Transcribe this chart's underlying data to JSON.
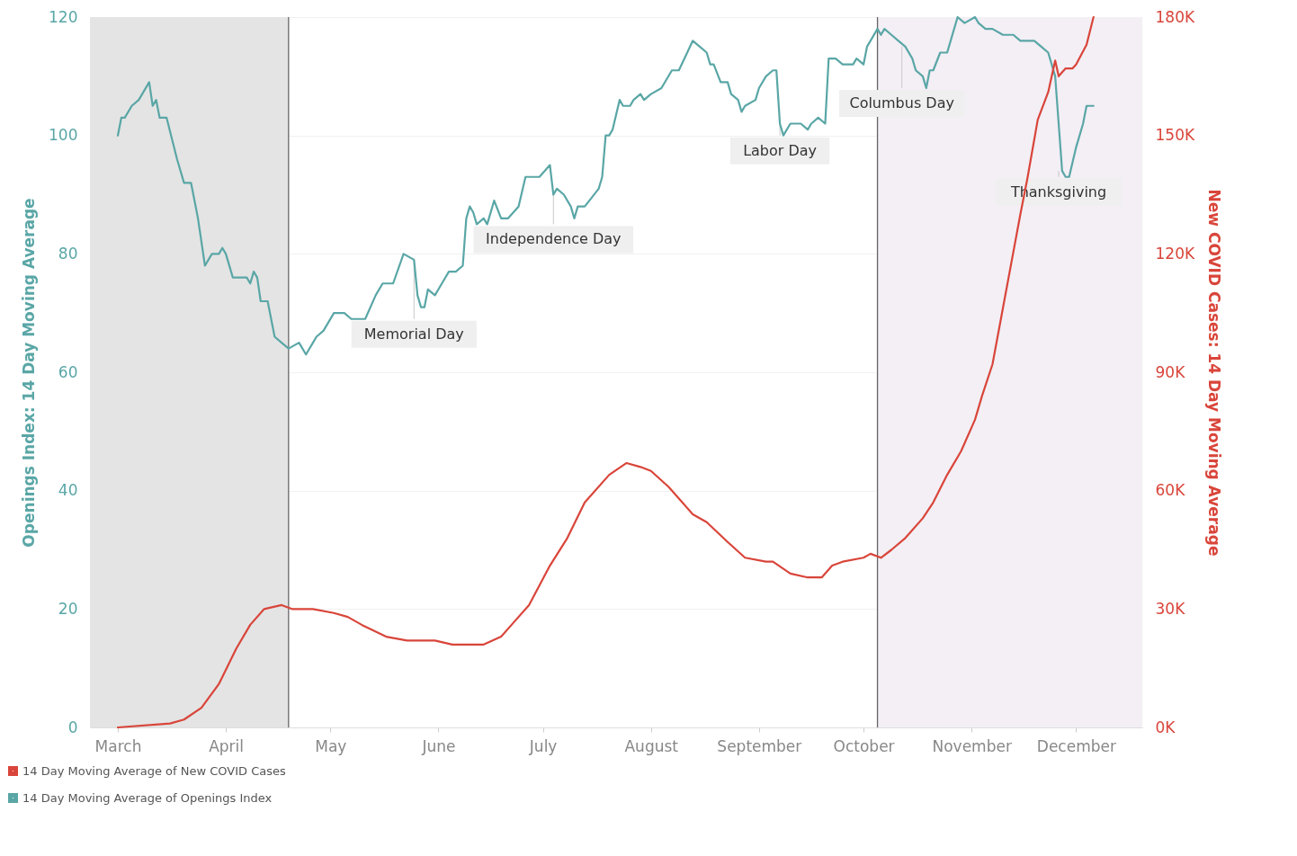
{
  "chart_data": {
    "type": "line",
    "ylabel": "Openings Index: 14 Day Moving Average",
    "y2label": "New COVID Cases: 14 Day Moving Average",
    "xlim": [
      "--02-22",
      "--12-20"
    ],
    "xticks": [
      {
        "value": "--03-01",
        "label": "March"
      },
      {
        "value": "--04-01",
        "label": "April"
      },
      {
        "value": "--05-01",
        "label": "May"
      },
      {
        "value": "--06-01",
        "label": "June"
      },
      {
        "value": "--07-01",
        "label": "July"
      },
      {
        "value": "--08-01",
        "label": "August"
      },
      {
        "value": "--09-01",
        "label": "September"
      },
      {
        "value": "--10-01",
        "label": "October"
      },
      {
        "value": "--11-01",
        "label": "November"
      },
      {
        "value": "--12-01",
        "label": "December"
      }
    ],
    "ylim": [
      0,
      120
    ],
    "yticks": [
      0,
      20,
      40,
      60,
      80,
      100,
      120
    ],
    "y2lim": [
      0,
      180
    ],
    "y2ticks": [
      {
        "value": 0,
        "label": "0K"
      },
      {
        "value": 30,
        "label": "30K"
      },
      {
        "value": 60,
        "label": "60K"
      },
      {
        "value": 90,
        "label": "90K"
      },
      {
        "value": 120,
        "label": "120K"
      },
      {
        "value": 150,
        "label": "150K"
      },
      {
        "value": 180,
        "label": "180K"
      }
    ],
    "grid": "y",
    "legend": "bottom left",
    "series": [
      {
        "name": "14 Day Moving Average of New COVID Cases",
        "color": "#d9453a",
        "axis": "y2",
        "x": [
          "--03-01",
          "--03-16",
          "--03-20",
          "--03-25",
          "--03-30",
          "--04-04",
          "--04-08",
          "--04-12",
          "--04-17",
          "--04-20",
          "--04-26",
          "--05-02",
          "--05-06",
          "--05-10",
          "--05-17",
          "--05-23",
          "--05-31",
          "--06-05",
          "--06-14",
          "--06-19",
          "--06-22",
          "--06-27",
          "--07-03",
          "--07-08",
          "--07-13",
          "--07-20",
          "--07-25",
          "--07-29",
          "--08-01",
          "--08-06",
          "--08-10",
          "--08-13",
          "--08-17",
          "--08-23",
          "--08-28",
          "--09-03",
          "--09-05",
          "--09-10",
          "--09-15",
          "--09-19",
          "--09-22",
          "--09-25",
          "--10-01",
          "--10-03",
          "--10-06",
          "--10-09",
          "--10-13",
          "--10-18",
          "--10-21",
          "--10-25",
          "--10-29",
          "--11-02",
          "--11-04",
          "--11-07",
          "--11-15",
          "--11-17",
          "--11-20",
          "--11-23",
          "--11-25",
          "--11-26",
          "--11-28",
          "--11-30",
          "--12-01",
          "--12-04",
          "--12-06"
        ],
        "values": [
          0,
          1,
          2,
          5,
          11,
          20,
          26,
          30,
          31,
          30,
          30,
          29,
          28,
          26,
          23,
          22,
          22,
          21,
          21,
          23,
          26,
          31,
          41,
          48,
          57,
          64,
          67,
          66,
          65,
          61,
          57,
          54,
          52,
          47,
          43,
          42,
          42,
          39,
          38,
          38,
          41,
          42,
          43,
          44,
          43,
          45,
          48,
          53,
          57,
          64,
          70,
          78,
          84,
          92,
          130,
          139,
          154,
          161,
          169,
          165,
          167,
          167,
          168,
          173,
          180
        ]
      },
      {
        "name": "14 Day Moving Average of Openings Index",
        "color": "#5aa6a6",
        "axis": "y",
        "x": [
          "--03-01",
          "--03-02",
          "--03-03",
          "--03-05",
          "--03-07",
          "--03-10",
          "--03-11",
          "--03-12",
          "--03-13",
          "--03-15",
          "--03-18",
          "--03-20",
          "--03-22",
          "--03-24",
          "--03-25",
          "--03-26",
          "--03-28",
          "--03-30",
          "--03-31",
          "--04-01",
          "--04-03",
          "--04-07",
          "--04-08",
          "--04-09",
          "--04-10",
          "--04-11",
          "--04-13",
          "--04-15",
          "--04-17",
          "--04-19",
          "--04-22",
          "--04-24",
          "--04-26",
          "--04-27",
          "--04-29",
          "--04-30",
          "--05-02",
          "--05-05",
          "--05-07",
          "--05-08",
          "--05-11",
          "--05-14",
          "--05-16",
          "--05-19",
          "--05-22",
          "--05-25",
          "--05-26",
          "--05-27",
          "--05-28",
          "--05-29",
          "--05-31",
          "--06-02",
          "--06-04",
          "--06-06",
          "--06-08",
          "--06-09",
          "--06-10",
          "--06-11",
          "--06-12",
          "--06-14",
          "--06-15",
          "--06-17",
          "--06-19",
          "--06-21",
          "--06-24",
          "--06-26",
          "--06-29",
          "--06-30",
          "--07-03",
          "--07-04",
          "--07-05",
          "--07-07",
          "--07-09",
          "--07-10",
          "--07-11",
          "--07-13",
          "--07-17",
          "--07-18",
          "--07-19",
          "--07-20",
          "--07-21",
          "--07-23",
          "--07-24",
          "--07-26",
          "--07-27",
          "--07-29",
          "--07-30",
          "--08-01",
          "--08-04",
          "--08-07",
          "--08-09",
          "--08-13",
          "--08-15",
          "--08-17",
          "--08-18",
          "--08-19",
          "--08-21",
          "--08-23",
          "--08-24",
          "--08-26",
          "--08-27",
          "--08-28",
          "--08-31",
          "--09-01",
          "--09-03",
          "--09-05",
          "--09-06",
          "--09-07",
          "--09-08",
          "--09-10",
          "--09-11",
          "--09-13",
          "--09-15",
          "--09-16",
          "--09-18",
          "--09-20",
          "--09-21",
          "--09-23",
          "--09-25",
          "--09-27",
          "--09-28",
          "--09-29",
          "--10-01",
          "--10-02",
          "--10-03",
          "--10-05",
          "--10-06",
          "--10-07",
          "--10-09",
          "--10-11",
          "--10-13",
          "--10-15",
          "--10-16",
          "--10-18",
          "--10-19",
          "--10-20",
          "--10-21",
          "--10-23",
          "--10-25",
          "--10-27",
          "--10-28",
          "--10-30",
          "--11-02",
          "--11-03",
          "--11-05",
          "--11-07",
          "--11-10",
          "--11-11",
          "--11-13",
          "--11-15",
          "--11-17",
          "--11-19",
          "--11-21",
          "--11-23",
          "--11-24",
          "--11-25",
          "--11-27",
          "--11-28",
          "--11-29",
          "--12-01",
          "--12-03",
          "--12-04",
          "--12-06"
        ],
        "values": [
          100,
          103,
          103,
          105,
          106,
          109,
          105,
          106,
          103,
          103,
          96,
          92,
          92,
          86,
          82,
          78,
          80,
          80,
          81,
          80,
          76,
          76,
          75,
          77,
          76,
          72,
          72,
          66,
          65,
          64,
          65,
          63,
          65,
          66,
          67,
          68,
          70,
          70,
          69,
          69,
          69,
          73,
          75,
          75,
          80,
          79,
          73,
          71,
          71,
          74,
          73,
          75,
          77,
          77,
          78,
          86,
          88,
          87,
          85,
          86,
          85,
          89,
          86,
          86,
          88,
          93,
          93,
          93,
          95,
          90,
          91,
          90,
          88,
          86,
          88,
          88,
          91,
          93,
          100,
          100,
          101,
          106,
          105,
          105,
          106,
          107,
          106,
          107,
          108,
          111,
          111,
          116,
          115,
          114,
          112,
          112,
          109,
          109,
          107,
          106,
          104,
          105,
          106,
          108,
          110,
          111,
          111,
          102,
          100,
          102,
          102,
          102,
          101,
          102,
          103,
          102,
          113,
          113,
          112,
          112,
          112,
          113,
          112,
          115,
          116,
          118,
          117,
          118,
          117,
          116,
          115,
          113,
          111,
          110,
          108,
          111,
          111,
          114,
          114,
          118,
          120,
          119,
          120,
          119,
          118,
          118,
          117,
          117,
          117,
          116,
          116,
          116,
          115,
          114,
          112,
          110,
          94,
          93,
          93,
          98,
          102,
          105,
          105
        ]
      }
    ],
    "bands": [
      {
        "axis": "x",
        "from": "--02-22",
        "to": "--04-19",
        "color": "#e4e4e4"
      },
      {
        "axis": "x",
        "from": "--10-05",
        "to": "--12-20",
        "color": "#f3eff5"
      }
    ],
    "ref_lines": [
      {
        "axis": "x",
        "value": "--04-19",
        "color": "#666666"
      },
      {
        "axis": "x",
        "value": "--10-05",
        "color": "#666666"
      }
    ],
    "annotations": [
      {
        "text": "Memorial Day",
        "x": "--05-25",
        "y": 79
      },
      {
        "text": "Independence Day",
        "x": "--07-04",
        "y": 90
      },
      {
        "text": "Labor Day",
        "x": "--09-07",
        "y": 102
      },
      {
        "text": "Columbus Day",
        "x": "--10-12",
        "y": 115
      },
      {
        "text": "Thanksgiving",
        "x": "--11-26",
        "y": 94
      }
    ]
  }
}
